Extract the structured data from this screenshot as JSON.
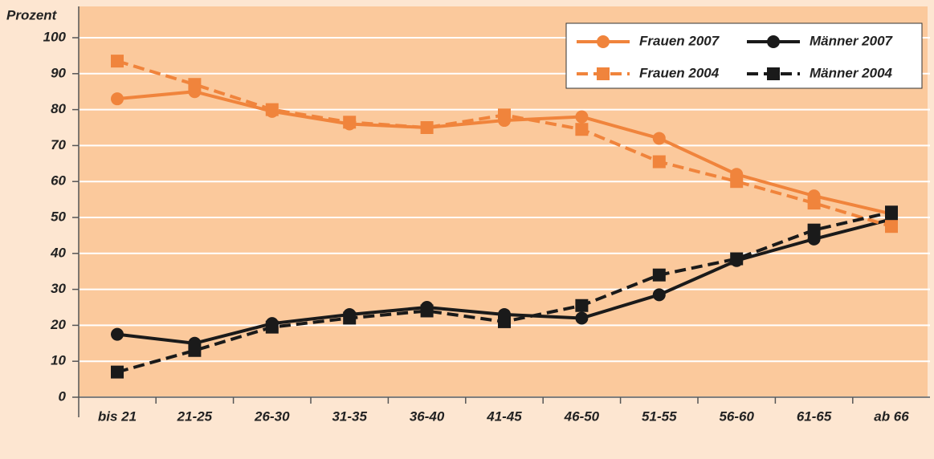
{
  "chart_data": {
    "type": "line",
    "y_label": "Prozent",
    "categories": [
      "bis 21",
      "21-25",
      "26-30",
      "31-35",
      "36-40",
      "41-45",
      "46-50",
      "51-55",
      "56-60",
      "61-65",
      "ab 66"
    ],
    "series": [
      {
        "name": "Frauen 2007",
        "color": "#f0843c",
        "dashed": false,
        "marker": "circle",
        "values": [
          83,
          85,
          79.5,
          76,
          75,
          77,
          78,
          72,
          62,
          56,
          51
        ]
      },
      {
        "name": "Männer 2007",
        "color": "#1a1a1a",
        "dashed": false,
        "marker": "circle",
        "values": [
          17.5,
          15,
          20.5,
          23,
          25,
          23,
          22,
          28.5,
          38,
          44,
          49.5
        ]
      },
      {
        "name": "Frauen 2004",
        "color": "#f0843c",
        "dashed": true,
        "marker": "square",
        "values": [
          93.5,
          87,
          80,
          76.5,
          75,
          78.5,
          74.5,
          65.5,
          60,
          54,
          47.5
        ]
      },
      {
        "name": "Männer 2004",
        "color": "#1a1a1a",
        "dashed": true,
        "marker": "square",
        "values": [
          7,
          13,
          19.5,
          22,
          24,
          21,
          25.5,
          34,
          38.5,
          46.5,
          51.5
        ]
      }
    ],
    "ylim": [
      0,
      100
    ],
    "yticks": [
      0,
      10,
      20,
      30,
      40,
      50,
      60,
      70,
      80,
      90,
      100
    ],
    "grid": true,
    "legend": "top-right"
  }
}
